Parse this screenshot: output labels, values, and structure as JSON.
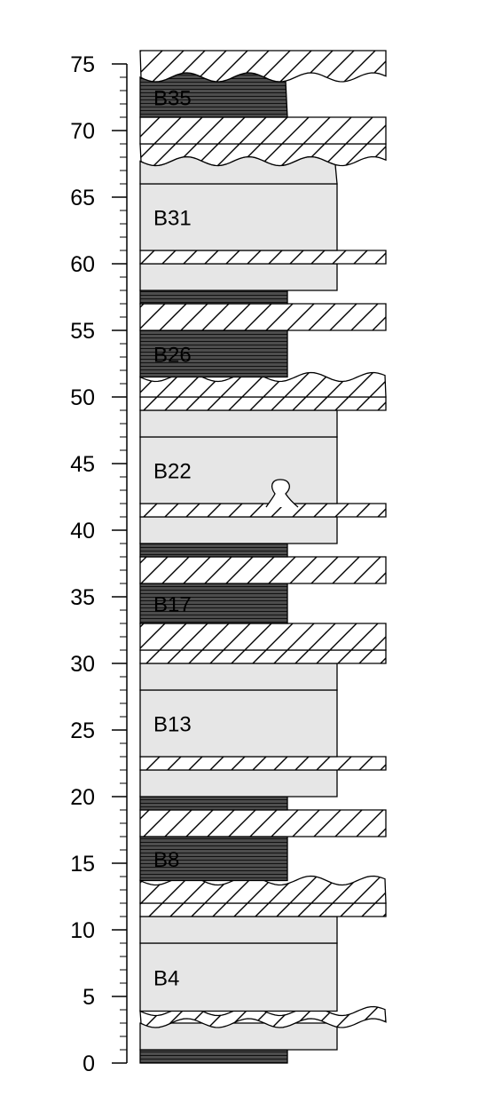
{
  "axis": {
    "min": 0,
    "max": 75,
    "major_step": 5,
    "minor_step": 1,
    "tick_labels": [
      "0",
      "5",
      "10",
      "15",
      "20",
      "25",
      "30",
      "35",
      "40",
      "45",
      "50",
      "55",
      "60",
      "65",
      "70",
      "75"
    ]
  },
  "colors": {
    "dark": "#4d4d4d",
    "dark_lines": "#000000",
    "light": "#e6e6e6",
    "outline": "#000000",
    "hatch_bg": "#ffffff"
  },
  "beds": [
    {
      "id": "b1",
      "type": "dark",
      "bottom": 0,
      "top": 1,
      "width": "narrow"
    },
    {
      "id": "b2",
      "type": "light",
      "bottom": 1,
      "top": 3,
      "width": "medium"
    },
    {
      "id": "b3",
      "type": "hatch",
      "bottom": 3,
      "top": 3.9,
      "width": "wide",
      "top_edge": "wavy",
      "bottom_edge": "wavy"
    },
    {
      "id": "b4",
      "type": "light",
      "bottom": 3.9,
      "top": 9,
      "width": "medium",
      "label": "B4"
    },
    {
      "id": "b5",
      "type": "light",
      "bottom": 9,
      "top": 11,
      "width": "medium"
    },
    {
      "id": "b6",
      "type": "hatch",
      "bottom": 11,
      "top": 12,
      "width": "wide"
    },
    {
      "id": "b7",
      "type": "hatch",
      "bottom": 12,
      "top": 13.7,
      "width": "wide",
      "top_edge": "wavy"
    },
    {
      "id": "b8",
      "type": "dark",
      "bottom": 13.7,
      "top": 17,
      "width": "narrow",
      "label": "B8"
    },
    {
      "id": "b9",
      "type": "hatch",
      "bottom": 17,
      "top": 19,
      "width": "wide"
    },
    {
      "id": "b10",
      "type": "dark",
      "bottom": 19,
      "top": 20,
      "width": "narrow"
    },
    {
      "id": "b11",
      "type": "light",
      "bottom": 20,
      "top": 22,
      "width": "medium"
    },
    {
      "id": "b12",
      "type": "hatch",
      "bottom": 22,
      "top": 23,
      "width": "wide"
    },
    {
      "id": "b13",
      "type": "light",
      "bottom": 23,
      "top": 28,
      "width": "medium",
      "label": "B13"
    },
    {
      "id": "b14",
      "type": "light",
      "bottom": 28,
      "top": 30,
      "width": "medium"
    },
    {
      "id": "b15",
      "type": "hatch",
      "bottom": 30,
      "top": 31,
      "width": "wide"
    },
    {
      "id": "b16",
      "type": "hatch",
      "bottom": 31,
      "top": 33,
      "width": "wide"
    },
    {
      "id": "b17",
      "type": "dark",
      "bottom": 33,
      "top": 36,
      "width": "narrow",
      "label": "B17"
    },
    {
      "id": "b18",
      "type": "hatch",
      "bottom": 36,
      "top": 38,
      "width": "wide"
    },
    {
      "id": "b19",
      "type": "dark",
      "bottom": 38,
      "top": 39,
      "width": "narrow"
    },
    {
      "id": "b20",
      "type": "light",
      "bottom": 39,
      "top": 41,
      "width": "medium"
    },
    {
      "id": "b21",
      "type": "hatch",
      "bottom": 41,
      "top": 42,
      "width": "wide"
    },
    {
      "id": "b22",
      "type": "light",
      "bottom": 42,
      "top": 47,
      "width": "medium",
      "label": "B22"
    },
    {
      "id": "b23",
      "type": "light",
      "bottom": 47,
      "top": 49,
      "width": "medium"
    },
    {
      "id": "b24",
      "type": "hatch",
      "bottom": 49,
      "top": 50,
      "width": "wide"
    },
    {
      "id": "b25",
      "type": "hatch",
      "bottom": 50,
      "top": 51.5,
      "width": "wide",
      "top_edge": "wavy"
    },
    {
      "id": "b26",
      "type": "dark",
      "bottom": 51.5,
      "top": 55,
      "width": "narrow",
      "label": "B26"
    },
    {
      "id": "b27",
      "type": "hatch",
      "bottom": 55,
      "top": 57,
      "width": "wide"
    },
    {
      "id": "b28",
      "type": "dark",
      "bottom": 57,
      "top": 58,
      "width": "narrow"
    },
    {
      "id": "b29",
      "type": "light",
      "bottom": 58,
      "top": 60,
      "width": "medium"
    },
    {
      "id": "b30",
      "type": "hatch",
      "bottom": 60,
      "top": 61,
      "width": "wide"
    },
    {
      "id": "b31",
      "type": "light",
      "bottom": 61,
      "top": 66,
      "width": "medium",
      "label": "B31"
    },
    {
      "id": "b32",
      "type": "light",
      "bottom": 66,
      "top": 67.7,
      "width": "medium",
      "top_edge": "wavy"
    },
    {
      "id": "b33",
      "type": "hatch",
      "bottom": 67.7,
      "top": 69,
      "width": "wide",
      "bottom_edge": "wavy"
    },
    {
      "id": "b34",
      "type": "hatch",
      "bottom": 69,
      "top": 71,
      "width": "wide"
    },
    {
      "id": "b35",
      "type": "dark",
      "bottom": 71,
      "top": 74,
      "width": "narrow",
      "label": "B35",
      "top_edge": "wavy"
    },
    {
      "id": "b36",
      "type": "hatch",
      "bottom": 74,
      "top": 76,
      "width": "wide",
      "bottom_edge": "wavy"
    }
  ]
}
